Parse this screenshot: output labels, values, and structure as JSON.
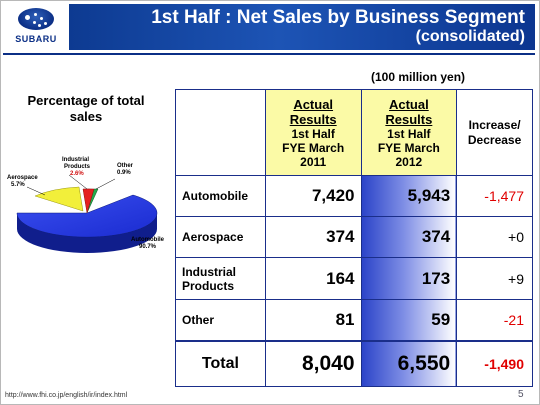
{
  "brand": {
    "logo_text": "SUBARU"
  },
  "header": {
    "title": "1st Half : Net Sales by Business Segment",
    "subtitle": "(consolidated)"
  },
  "unit_note": "(100 million yen)",
  "pie": {
    "title": "Percentage of total sales",
    "slices": [
      {
        "label": "Automobile",
        "value_label": "90.7%",
        "percent": 90.7,
        "color": "#1f35e0"
      },
      {
        "label": "Aerospace",
        "value_label": "5.7%",
        "percent": 5.7,
        "color": "#f2ef3a"
      },
      {
        "label": "Industrial Products",
        "value_label": "2.6%",
        "percent": 2.6,
        "color": "#e52020"
      },
      {
        "label": "Other",
        "value_label": "0.9%",
        "percent": 0.9,
        "color": "#23a84a"
      }
    ]
  },
  "table": {
    "columns": {
      "col_2011": {
        "l1": "Actual",
        "l2": "Results",
        "l3": "1st Half",
        "l4": "FYE March",
        "l5": "2011"
      },
      "col_2012": {
        "l1": "Actual",
        "l2": "Results",
        "l3": "1st Half",
        "l4": "FYE March",
        "l5": "2012"
      },
      "col_inc": {
        "l1": "Increase/",
        "l2": "Decrease"
      }
    },
    "rows": [
      {
        "name": "Automobile",
        "v2011": "7,420",
        "v2012": "5,943",
        "inc": "-1,477"
      },
      {
        "name": "Aerospace",
        "v2011": "374",
        "v2012": "374",
        "inc": "+0"
      },
      {
        "name_l1": "Industrial",
        "name_l2": "Products",
        "v2011": "164",
        "v2012": "173",
        "inc": "+9"
      },
      {
        "name": "Other",
        "v2011": "81",
        "v2012": "59",
        "inc": "-21"
      }
    ],
    "total": {
      "name": "Total",
      "v2011": "8,040",
      "v2012": "6,550",
      "inc": "-1,490"
    }
  },
  "footer": {
    "url": "http://www.fhi.co.jp/english/ir/index.html",
    "page": "5"
  }
}
